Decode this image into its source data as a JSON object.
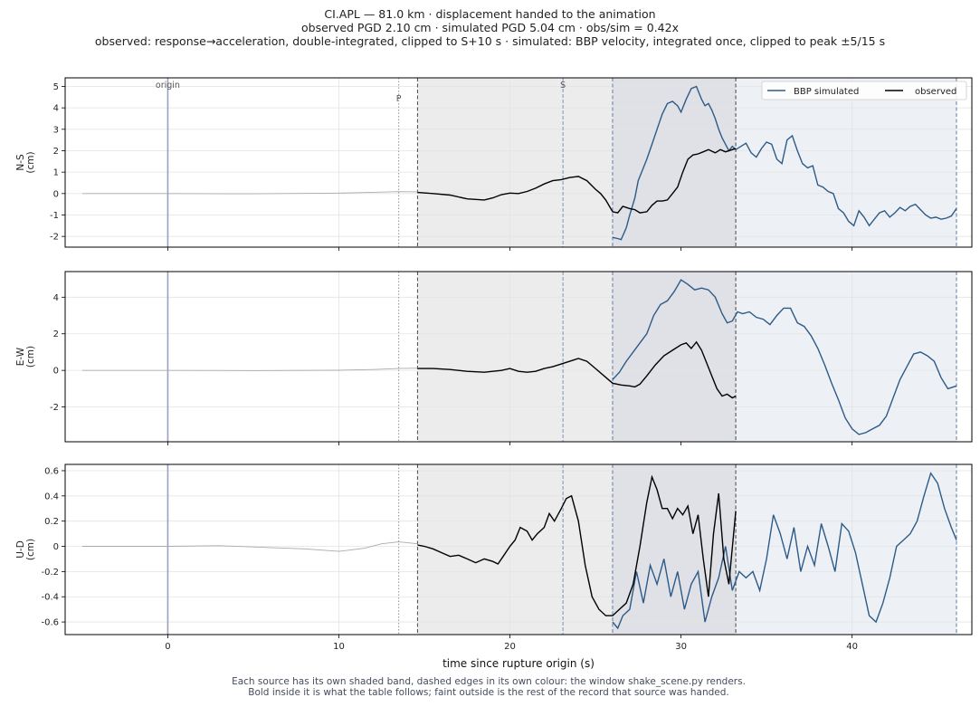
{
  "title_lines": [
    "CI.APL  —  81.0 km   ·   displacement handed to the animation",
    "observed PGD 2.10 cm   ·   simulated PGD 5.04 cm   ·   obs/sim = 0.42x",
    "observed: response→acceleration, double-integrated, clipped to S+10 s   ·   simulated: BBP velocity, integrated once, clipped to peak ±5/15 s"
  ],
  "footnote_lines": [
    "Each source has its own shaded band, dashed edges in its own colour: the window shake_scene.py renders.",
    "Bold inside it is what the table follows;   faint outside is the rest of the record that source was handed."
  ],
  "colors": {
    "observed": "#000000",
    "simulated": "#2e5a88",
    "faint": "#aaaaaa",
    "origin_line": "#9aa0c0",
    "p_line": "#888888",
    "s_line": "#7f93b8",
    "obs_band": "#ececec",
    "sim_band": "#edf1f5",
    "overlap_band": "#dfe1e6",
    "obs_edge": "#555555",
    "sim_edge": "#6f86aa",
    "grid": "#e3e3e3"
  },
  "chart_data": {
    "type": "line",
    "xlabel": "time since rupture origin (s)",
    "xlim": [
      -6,
      47
    ],
    "xticks": [
      0,
      10,
      20,
      30,
      40
    ],
    "markers": {
      "origin": {
        "label": "origin",
        "t": 0
      },
      "P": {
        "label": "P",
        "t": 13.5
      },
      "S": {
        "label": "S",
        "t": 23.1
      }
    },
    "observed_window": [
      14.6,
      33.2
    ],
    "simulated_window": [
      26.0,
      46.1
    ],
    "legend": {
      "position": "top-right",
      "entries": [
        "BBP simulated",
        "observed"
      ]
    },
    "panels": [
      {
        "ylabel": "N-S\n(cm)",
        "ylim": [
          -2.5,
          5.4
        ],
        "yticks": [
          -2,
          -1,
          0,
          1,
          2,
          3,
          4,
          5
        ],
        "observed_faint": {
          "t": [
            -5,
            0,
            5,
            10,
            12,
            13.5,
            14.6
          ],
          "v": [
            0,
            0,
            -0.01,
            0.02,
            0.06,
            0.09,
            0.08
          ]
        },
        "observed": {
          "t": [
            14.6,
            15.5,
            16.5,
            17.5,
            18.5,
            19.0,
            19.5,
            20.0,
            20.5,
            21.0,
            21.5,
            22.0,
            22.5,
            23.0,
            23.5,
            24.0,
            24.5,
            25.0,
            25.3,
            25.6,
            26.0,
            26.3,
            26.6,
            27.0,
            27.3,
            27.6,
            28.0,
            28.3,
            28.6,
            28.9,
            29.2,
            29.5,
            29.8,
            30.1,
            30.4,
            30.7,
            31.0,
            31.3,
            31.6,
            32.0,
            32.3,
            32.6,
            33.2
          ],
          "v": [
            0.05,
            0.0,
            -0.07,
            -0.25,
            -0.3,
            -0.2,
            -0.05,
            0.02,
            0.0,
            0.1,
            0.25,
            0.45,
            0.6,
            0.65,
            0.75,
            0.8,
            0.6,
            0.2,
            0.0,
            -0.3,
            -0.85,
            -0.9,
            -0.6,
            -0.7,
            -0.75,
            -0.9,
            -0.85,
            -0.55,
            -0.35,
            -0.35,
            -0.3,
            0.0,
            0.3,
            1.0,
            1.6,
            1.8,
            1.85,
            1.95,
            2.05,
            1.9,
            2.05,
            1.95,
            2.1
          ]
        },
        "simulated": {
          "t": [
            26.0,
            26.3,
            26.5,
            26.8,
            27.0,
            27.3,
            27.5,
            27.8,
            28.0,
            28.3,
            28.6,
            28.9,
            29.2,
            29.5,
            29.8,
            30.0,
            30.3,
            30.6,
            30.9,
            31.2,
            31.4,
            31.6,
            31.8,
            32.0,
            32.2,
            32.4,
            32.6,
            32.8,
            33.0,
            33.2,
            33.5,
            33.8,
            34.1,
            34.4,
            34.7,
            35.0,
            35.3,
            35.6,
            35.9,
            36.2,
            36.5,
            36.8,
            37.1,
            37.4,
            37.7,
            38.0,
            38.3,
            38.6,
            38.9,
            39.2,
            39.5,
            39.8,
            40.1,
            40.4,
            40.7,
            41.0,
            41.3,
            41.6,
            41.9,
            42.2,
            42.5,
            42.8,
            43.1,
            43.4,
            43.7,
            44.0,
            44.3,
            44.6,
            44.9,
            45.2,
            45.5,
            45.8,
            46.1
          ],
          "v": [
            -2.05,
            -2.1,
            -2.15,
            -1.6,
            -1.0,
            -0.2,
            0.6,
            1.2,
            1.6,
            2.3,
            3.0,
            3.7,
            4.2,
            4.3,
            4.1,
            3.8,
            4.4,
            4.9,
            5.0,
            4.4,
            4.1,
            4.2,
            3.9,
            3.5,
            3.0,
            2.6,
            2.3,
            2.0,
            2.2,
            2.05,
            2.2,
            2.35,
            1.9,
            1.7,
            2.1,
            2.4,
            2.3,
            1.6,
            1.4,
            2.5,
            2.7,
            2.0,
            1.4,
            1.2,
            1.3,
            0.4,
            0.3,
            0.1,
            0.0,
            -0.7,
            -0.9,
            -1.3,
            -1.5,
            -0.8,
            -1.1,
            -1.5,
            -1.2,
            -0.9,
            -0.8,
            -1.1,
            -0.9,
            -0.65,
            -0.8,
            -0.6,
            -0.5,
            -0.75,
            -1.0,
            -1.15,
            -1.1,
            -1.2,
            -1.15,
            -1.05,
            -0.7
          ]
        }
      },
      {
        "ylabel": "E-W\n(cm)",
        "ylim": [
          -3.9,
          5.4
        ],
        "yticks": [
          -2,
          0,
          2,
          4
        ],
        "observed_faint": {
          "t": [
            -5,
            0,
            5,
            10,
            12,
            13.5,
            14.6
          ],
          "v": [
            0,
            0,
            -0.01,
            0.01,
            0.05,
            0.1,
            0.12
          ]
        },
        "observed": {
          "t": [
            14.6,
            15.5,
            16.5,
            17.5,
            18.5,
            19.5,
            20.0,
            20.5,
            21.0,
            21.5,
            22.0,
            22.5,
            23.0,
            23.5,
            24.0,
            24.5,
            25.0,
            25.5,
            26.0,
            26.5,
            27.0,
            27.3,
            27.6,
            28.0,
            28.5,
            29.0,
            29.5,
            30.0,
            30.3,
            30.6,
            30.9,
            31.2,
            31.5,
            31.8,
            32.1,
            32.4,
            32.7,
            33.0,
            33.2
          ],
          "v": [
            0.1,
            0.1,
            0.05,
            -0.05,
            -0.1,
            0.0,
            0.1,
            -0.05,
            -0.1,
            -0.05,
            0.1,
            0.2,
            0.35,
            0.5,
            0.65,
            0.5,
            0.1,
            -0.3,
            -0.7,
            -0.8,
            -0.85,
            -0.9,
            -0.75,
            -0.3,
            0.3,
            0.8,
            1.1,
            1.4,
            1.5,
            1.2,
            1.55,
            1.1,
            0.4,
            -0.3,
            -1.0,
            -1.4,
            -1.3,
            -1.5,
            -1.4
          ]
        },
        "simulated": {
          "t": [
            26.0,
            26.4,
            26.8,
            27.2,
            27.6,
            28.0,
            28.4,
            28.8,
            29.2,
            29.6,
            30.0,
            30.4,
            30.8,
            31.2,
            31.6,
            32.0,
            32.4,
            32.7,
            33.0,
            33.3,
            33.6,
            34.0,
            34.4,
            34.8,
            35.2,
            35.6,
            36.0,
            36.4,
            36.8,
            37.2,
            37.6,
            38.0,
            38.4,
            38.8,
            39.2,
            39.6,
            40.0,
            40.4,
            40.8,
            41.2,
            41.6,
            42.0,
            42.4,
            42.8,
            43.2,
            43.6,
            44.0,
            44.4,
            44.8,
            45.2,
            45.6,
            46.1
          ],
          "v": [
            -0.5,
            -0.1,
            0.5,
            1.0,
            1.5,
            2.0,
            3.0,
            3.6,
            3.8,
            4.3,
            4.95,
            4.7,
            4.4,
            4.5,
            4.4,
            4.0,
            3.1,
            2.6,
            2.7,
            3.2,
            3.1,
            3.2,
            2.9,
            2.8,
            2.5,
            3.0,
            3.4,
            3.4,
            2.6,
            2.4,
            1.9,
            1.2,
            0.3,
            -0.7,
            -1.6,
            -2.6,
            -3.2,
            -3.5,
            -3.4,
            -3.2,
            -3.0,
            -2.5,
            -1.5,
            -0.5,
            0.2,
            0.9,
            1.0,
            0.8,
            0.5,
            -0.4,
            -1.0,
            -0.85
          ]
        }
      },
      {
        "ylabel": "U-D\n(cm)",
        "ylim": [
          -0.7,
          0.65
        ],
        "yticks": [
          -0.6,
          -0.4,
          -0.2,
          0.0,
          0.2,
          0.4,
          0.6
        ],
        "observed_faint": {
          "t": [
            -5,
            0,
            3,
            6,
            8,
            10,
            11.5,
            12.5,
            13.5,
            14.6
          ],
          "v": [
            0,
            0,
            0.005,
            -0.01,
            -0.02,
            -0.04,
            -0.015,
            0.02,
            0.035,
            0.02
          ]
        },
        "observed": {
          "t": [
            14.6,
            15.0,
            15.5,
            16.0,
            16.5,
            17.0,
            17.5,
            18.0,
            18.5,
            19.0,
            19.3,
            19.6,
            20.0,
            20.3,
            20.6,
            21.0,
            21.3,
            21.6,
            22.0,
            22.3,
            22.6,
            23.0,
            23.3,
            23.6,
            24.0,
            24.4,
            24.8,
            25.2,
            25.6,
            26.0,
            26.4,
            26.8,
            27.2,
            27.6,
            28.0,
            28.3,
            28.6,
            28.9,
            29.2,
            29.5,
            29.8,
            30.1,
            30.4,
            30.7,
            31.0,
            31.3,
            31.6,
            31.9,
            32.2,
            32.5,
            32.8,
            33.2
          ],
          "v": [
            0.01,
            0.0,
            -0.02,
            -0.05,
            -0.08,
            -0.07,
            -0.1,
            -0.13,
            -0.1,
            -0.12,
            -0.14,
            -0.08,
            0.0,
            0.05,
            0.15,
            0.12,
            0.05,
            0.1,
            0.15,
            0.26,
            0.2,
            0.3,
            0.38,
            0.4,
            0.2,
            -0.15,
            -0.4,
            -0.5,
            -0.55,
            -0.55,
            -0.5,
            -0.45,
            -0.3,
            0.0,
            0.35,
            0.55,
            0.45,
            0.3,
            0.3,
            0.22,
            0.3,
            0.25,
            0.32,
            0.1,
            0.25,
            -0.1,
            -0.4,
            0.1,
            0.42,
            -0.1,
            -0.3,
            0.28
          ]
        },
        "simulated": {
          "t": [
            26.0,
            26.3,
            26.6,
            27.0,
            27.4,
            27.8,
            28.2,
            28.6,
            29.0,
            29.4,
            29.8,
            30.2,
            30.6,
            31.0,
            31.4,
            31.8,
            32.2,
            32.6,
            33.0,
            33.4,
            33.8,
            34.2,
            34.6,
            35.0,
            35.4,
            35.8,
            36.2,
            36.6,
            37.0,
            37.4,
            37.8,
            38.2,
            38.6,
            39.0,
            39.4,
            39.8,
            40.2,
            40.6,
            41.0,
            41.4,
            41.8,
            42.2,
            42.6,
            43.0,
            43.4,
            43.8,
            44.2,
            44.6,
            45.0,
            45.4,
            45.8,
            46.1
          ],
          "v": [
            -0.6,
            -0.65,
            -0.55,
            -0.5,
            -0.2,
            -0.45,
            -0.15,
            -0.3,
            -0.1,
            -0.4,
            -0.2,
            -0.5,
            -0.3,
            -0.2,
            -0.6,
            -0.4,
            -0.25,
            0.0,
            -0.35,
            -0.2,
            -0.25,
            -0.2,
            -0.35,
            -0.1,
            0.25,
            0.1,
            -0.1,
            0.15,
            -0.2,
            0.0,
            -0.15,
            0.18,
            0.0,
            -0.2,
            0.18,
            0.12,
            -0.05,
            -0.3,
            -0.55,
            -0.6,
            -0.45,
            -0.25,
            0.0,
            0.05,
            0.1,
            0.2,
            0.4,
            0.58,
            0.5,
            0.3,
            0.15,
            0.05
          ]
        }
      }
    ]
  }
}
